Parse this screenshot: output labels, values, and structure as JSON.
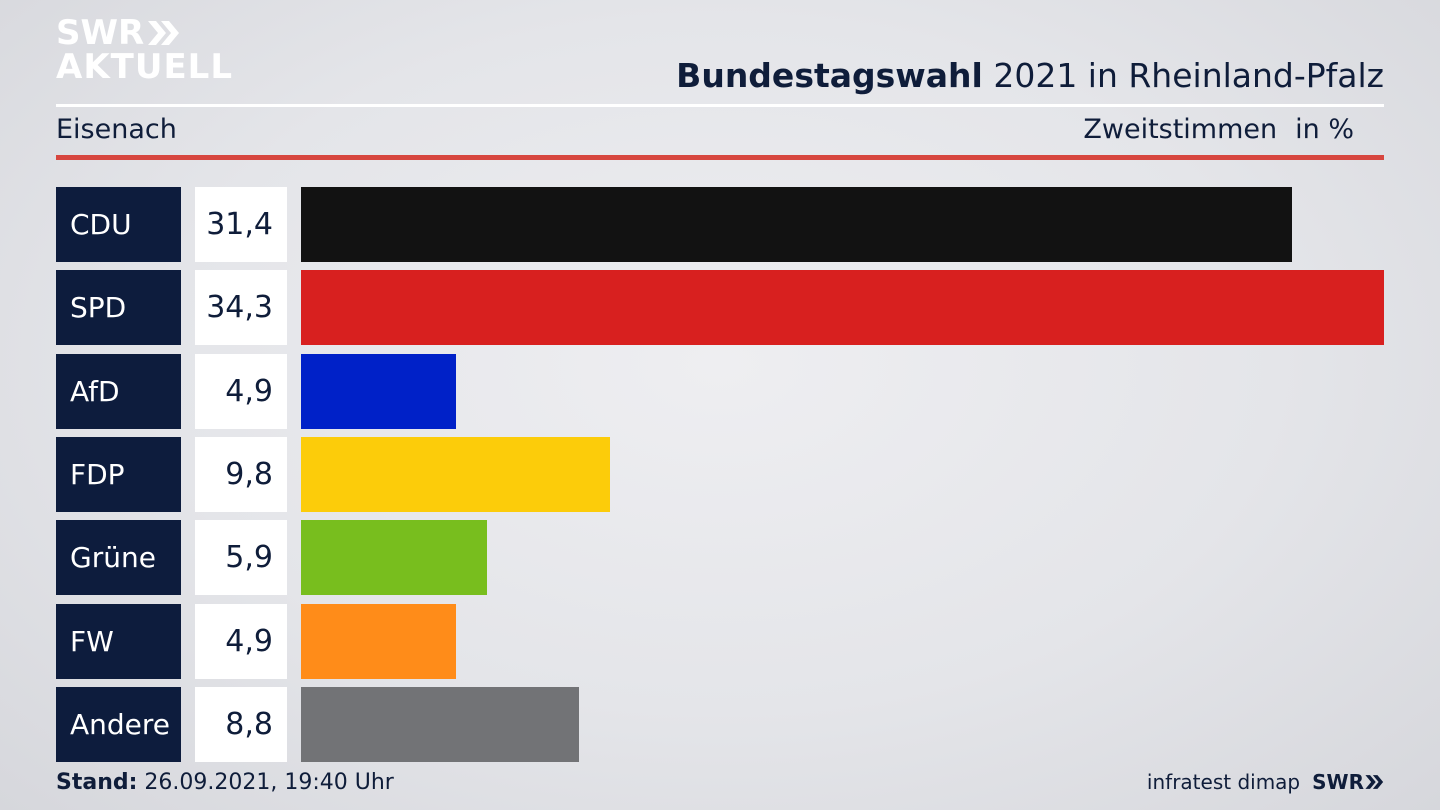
{
  "logo": {
    "line1": "SWR",
    "line2": "AKTUELL"
  },
  "header": {
    "title_strong": "Bundestagswahl",
    "title_rest": "2021 in Rheinland-Pfalz",
    "region": "Eisenach",
    "measure": "Zweitstimmen",
    "unit": "in %"
  },
  "chart_data": {
    "type": "bar",
    "orientation": "horizontal",
    "categories": [
      "CDU",
      "SPD",
      "AfD",
      "FDP",
      "Grüne",
      "FW",
      "Andere"
    ],
    "values": [
      31.4,
      34.3,
      4.9,
      9.8,
      5.9,
      4.9,
      8.8
    ],
    "value_labels": [
      "31,4",
      "34,3",
      "4,9",
      "9,8",
      "5,9",
      "4,9",
      "8,8"
    ],
    "colors": [
      "#121212",
      "#d8201f",
      "#0021c8",
      "#fccc0a",
      "#78be1e",
      "#ff8c19",
      "#727376"
    ],
    "xlim": [
      0,
      34.3
    ]
  },
  "footer": {
    "stand_label": "Stand:",
    "stand_value": "26.09.2021, 19:40 Uhr",
    "source": "infratest dimap",
    "brand": "SWR"
  }
}
